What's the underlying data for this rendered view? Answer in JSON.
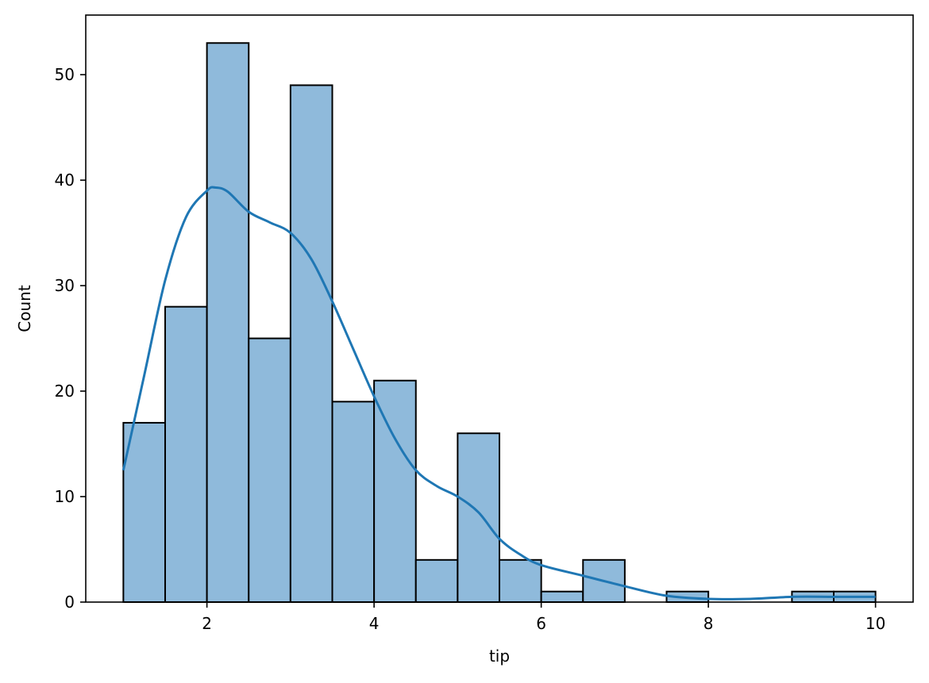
{
  "chart_data": {
    "type": "bar",
    "subtype": "histogram",
    "title": "",
    "xlabel": "tip",
    "ylabel": "Count",
    "xlim": [
      0.55,
      10.45
    ],
    "ylim": [
      0,
      55.65
    ],
    "xticks": [
      2,
      4,
      6,
      8,
      10
    ],
    "yticks": [
      0,
      10,
      20,
      30,
      40,
      50
    ],
    "bins": [
      {
        "start": 1.0,
        "end": 1.5,
        "count": 17
      },
      {
        "start": 1.5,
        "end": 2.0,
        "count": 28
      },
      {
        "start": 2.0,
        "end": 2.5,
        "count": 53
      },
      {
        "start": 2.5,
        "end": 3.0,
        "count": 25
      },
      {
        "start": 3.0,
        "end": 3.5,
        "count": 49
      },
      {
        "start": 3.5,
        "end": 4.0,
        "count": 19
      },
      {
        "start": 4.0,
        "end": 4.5,
        "count": 21
      },
      {
        "start": 4.5,
        "end": 5.0,
        "count": 4
      },
      {
        "start": 5.0,
        "end": 5.5,
        "count": 16
      },
      {
        "start": 5.5,
        "end": 6.0,
        "count": 4
      },
      {
        "start": 6.0,
        "end": 6.5,
        "count": 1
      },
      {
        "start": 6.5,
        "end": 7.0,
        "count": 4
      },
      {
        "start": 7.0,
        "end": 7.5,
        "count": 0
      },
      {
        "start": 7.5,
        "end": 8.0,
        "count": 1
      },
      {
        "start": 8.0,
        "end": 8.5,
        "count": 0
      },
      {
        "start": 8.5,
        "end": 9.0,
        "count": 0
      },
      {
        "start": 9.0,
        "end": 9.5,
        "count": 1
      },
      {
        "start": 9.5,
        "end": 10.0,
        "count": 1
      }
    ],
    "kde": {
      "x": [
        1.0,
        1.25,
        1.5,
        1.75,
        2.0,
        2.1,
        2.25,
        2.5,
        2.75,
        3.0,
        3.25,
        3.5,
        3.75,
        4.0,
        4.25,
        4.5,
        4.75,
        5.0,
        5.25,
        5.5,
        5.75,
        6.0,
        6.5,
        7.0,
        7.5,
        8.0,
        8.5,
        9.0,
        9.5,
        10.0
      ],
      "y": [
        12.5,
        21.5,
        30.5,
        36.5,
        39.0,
        39.3,
        38.9,
        37.0,
        36.0,
        35.0,
        32.5,
        28.5,
        24.0,
        19.5,
        15.5,
        12.5,
        11.0,
        10.0,
        8.5,
        6.0,
        4.5,
        3.5,
        2.5,
        1.5,
        0.6,
        0.3,
        0.3,
        0.5,
        0.5,
        0.5
      ]
    },
    "grid": false,
    "legend": null,
    "colors": {
      "bar_fill": "#8fbadb",
      "bar_edge": "#000000",
      "kde_line": "#1f77b4"
    }
  }
}
